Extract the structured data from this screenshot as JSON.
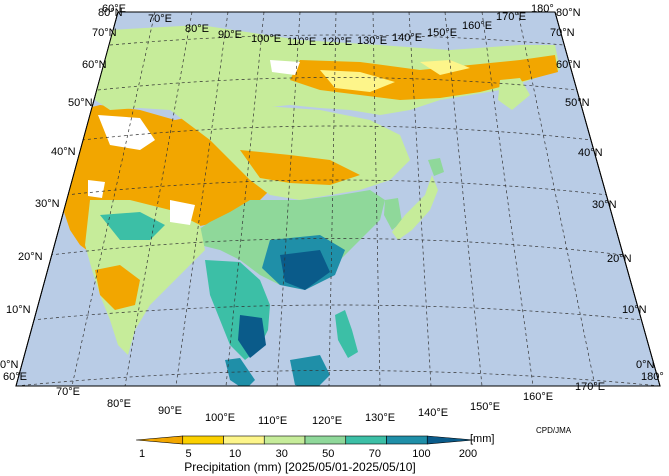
{
  "map": {
    "credit": "CPD/JMA",
    "title": "Precipitation (mm) [2025/05/01-2025/05/10]",
    "unit": "[mm]",
    "ocean_color": "#b9cce6",
    "top_longitudes": [
      "60°E",
      "70°E",
      "80°E",
      "90°E",
      "100°E",
      "110°E",
      "120°E",
      "130°E",
      "140°E",
      "150°E",
      "160°E",
      "170°E",
      "180°"
    ],
    "bottom_longitudes": [
      "60°E",
      "70°E",
      "80°E",
      "90°E",
      "100°E",
      "110°E",
      "120°E",
      "130°E",
      "140°E",
      "150°E",
      "160°E",
      "170°E",
      "180°"
    ],
    "left_latitudes": [
      "0°N",
      "10°N",
      "20°N",
      "30°N",
      "40°N",
      "50°N",
      "60°N",
      "70°N",
      "80°N"
    ],
    "right_latitudes": [
      "0°N",
      "10°N",
      "20°N",
      "30°N",
      "40°N",
      "50°N",
      "60°N",
      "70°N",
      "80°N"
    ]
  },
  "legend": {
    "ticks": [
      "1",
      "5",
      "10",
      "30",
      "50",
      "70",
      "100",
      "200"
    ],
    "colors": [
      "#f2a600",
      "#fbd000",
      "#fdf58a",
      "#c6ec9a",
      "#8fd89a",
      "#3cbfa6",
      "#1f8fa8",
      "#0a5b8a"
    ]
  }
}
